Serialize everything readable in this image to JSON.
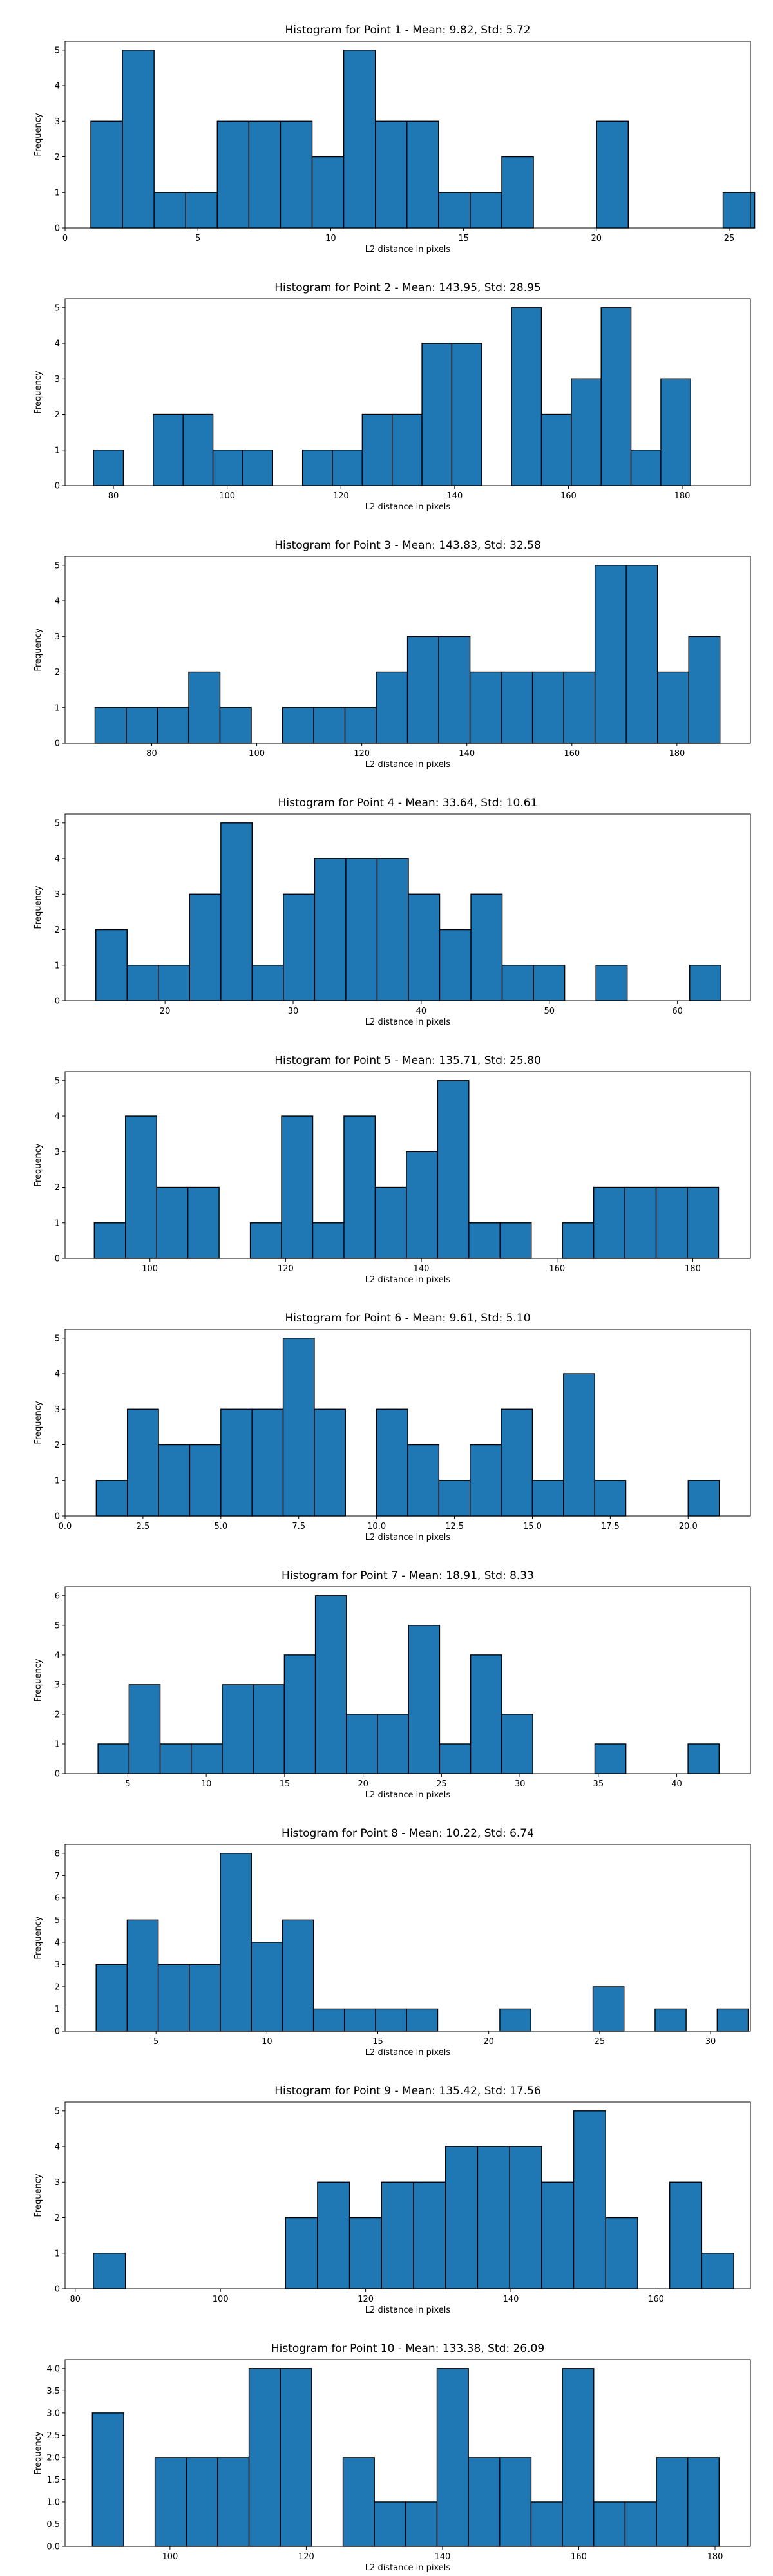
{
  "chart_data": [
    {
      "type": "bar",
      "title": "Histogram for Point 1 - Mean: 9.82, Std: 5.72",
      "xlabel": "L2 distance in pixels",
      "ylabel": "Frequency",
      "xlim": [
        0,
        25.8
      ],
      "ylim": [
        0,
        5.25
      ],
      "x_ticks": [
        0,
        5,
        10,
        15,
        20,
        25
      ],
      "x_tick_labels": [
        "0",
        "5",
        "10",
        "15",
        "20",
        "25"
      ],
      "y_ticks": [
        0,
        1,
        2,
        3,
        4,
        5
      ],
      "y_tick_labels": [
        "0",
        "1",
        "2",
        "3",
        "4",
        "5"
      ],
      "bin_start": 0.97,
      "bin_width": 1.19,
      "values": [
        3,
        5,
        1,
        1,
        3,
        3,
        3,
        2,
        5,
        3,
        3,
        1,
        1,
        2,
        0,
        0,
        3,
        0,
        0,
        0,
        1
      ]
    },
    {
      "type": "bar",
      "title": "Histogram for Point 2 - Mean: 143.95, Std: 28.95",
      "xlabel": "L2 distance in pixels",
      "ylabel": "Frequency",
      "xlim": [
        71.5,
        192
      ],
      "ylim": [
        0,
        5.25
      ],
      "x_ticks": [
        80,
        100,
        120,
        140,
        160,
        180
      ],
      "x_tick_labels": [
        "80",
        "100",
        "120",
        "140",
        "160",
        "180"
      ],
      "y_ticks": [
        0,
        1,
        2,
        3,
        4,
        5
      ],
      "y_tick_labels": [
        "0",
        "1",
        "2",
        "3",
        "4",
        "5"
      ],
      "bin_start": 76.5,
      "bin_width": 5.25,
      "values": [
        1,
        0,
        2,
        2,
        1,
        1,
        0,
        1,
        1,
        2,
        2,
        4,
        4,
        0,
        5,
        2,
        3,
        5,
        1,
        3
      ]
    },
    {
      "type": "bar",
      "title": "Histogram for Point 3 - Mean: 143.83, Std: 32.58",
      "xlabel": "L2 distance in pixels",
      "ylabel": "Frequency",
      "xlim": [
        63.5,
        194
      ],
      "ylim": [
        0,
        5.25
      ],
      "x_ticks": [
        80,
        100,
        120,
        140,
        160,
        180
      ],
      "x_tick_labels": [
        "80",
        "100",
        "120",
        "140",
        "160",
        "180"
      ],
      "y_ticks": [
        0,
        1,
        2,
        3,
        4,
        5
      ],
      "y_tick_labels": [
        "0",
        "1",
        "2",
        "3",
        "4",
        "5"
      ],
      "bin_start": 69.2,
      "bin_width": 5.95,
      "values": [
        1,
        1,
        1,
        2,
        1,
        0,
        1,
        1,
        1,
        2,
        3,
        3,
        2,
        2,
        2,
        2,
        5,
        5,
        2,
        3
      ]
    },
    {
      "type": "bar",
      "title": "Histogram for Point 4 - Mean: 33.64, Std: 10.61",
      "xlabel": "L2 distance in pixels",
      "ylabel": "Frequency",
      "xlim": [
        12.2,
        65.7
      ],
      "ylim": [
        0,
        5.25
      ],
      "x_ticks": [
        20,
        30,
        40,
        50,
        60
      ],
      "x_tick_labels": [
        "20",
        "30",
        "40",
        "50",
        "60"
      ],
      "y_ticks": [
        0,
        1,
        2,
        3,
        4,
        5
      ],
      "y_tick_labels": [
        "0",
        "1",
        "2",
        "3",
        "4",
        "5"
      ],
      "bin_start": 14.6,
      "bin_width": 2.44,
      "values": [
        2,
        1,
        1,
        3,
        5,
        1,
        3,
        4,
        4,
        4,
        3,
        2,
        3,
        1,
        1,
        0,
        1,
        0,
        0,
        1
      ]
    },
    {
      "type": "bar",
      "title": "Histogram for Point 5 - Mean: 135.71, Std: 25.80",
      "xlabel": "L2 distance in pixels",
      "ylabel": "Frequency",
      "xlim": [
        87.5,
        188.5
      ],
      "ylim": [
        0,
        5.25
      ],
      "x_ticks": [
        100,
        120,
        140,
        160,
        180
      ],
      "x_tick_labels": [
        "100",
        "120",
        "140",
        "160",
        "180"
      ],
      "y_ticks": [
        0,
        1,
        2,
        3,
        4,
        5
      ],
      "y_tick_labels": [
        "0",
        "1",
        "2",
        "3",
        "4",
        "5"
      ],
      "bin_start": 91.8,
      "bin_width": 4.6,
      "values": [
        1,
        4,
        2,
        2,
        0,
        1,
        4,
        1,
        4,
        2,
        3,
        5,
        1,
        1,
        0,
        1,
        2,
        2,
        2,
        2
      ]
    },
    {
      "type": "bar",
      "title": "Histogram for Point 6 - Mean: 9.61, Std: 5.10",
      "xlabel": "L2 distance in pixels",
      "ylabel": "Frequency",
      "xlim": [
        0,
        22.0
      ],
      "ylim": [
        0,
        5.25
      ],
      "x_ticks": [
        0,
        2.5,
        5,
        7.5,
        10,
        12.5,
        15,
        17.5,
        20
      ],
      "x_tick_labels": [
        "0.0",
        "2.5",
        "5.0",
        "7.5",
        "10.0",
        "12.5",
        "15.0",
        "17.5",
        "20.0"
      ],
      "y_ticks": [
        0,
        1,
        2,
        3,
        4,
        5
      ],
      "y_tick_labels": [
        "0",
        "1",
        "2",
        "3",
        "4",
        "5"
      ],
      "bin_start": 1.0,
      "bin_width": 1.0,
      "values": [
        1,
        3,
        2,
        2,
        3,
        3,
        5,
        3,
        0,
        3,
        2,
        1,
        2,
        3,
        1,
        4,
        1,
        0,
        0,
        1
      ]
    },
    {
      "type": "bar",
      "title": "Histogram for Point 7 - Mean: 18.91, Std: 8.33",
      "xlabel": "L2 distance in pixels",
      "ylabel": "Frequency",
      "xlim": [
        1.0,
        44.7
      ],
      "ylim": [
        0,
        6.3
      ],
      "x_ticks": [
        5,
        10,
        15,
        20,
        25,
        30,
        35,
        40
      ],
      "x_tick_labels": [
        "5",
        "10",
        "15",
        "20",
        "25",
        "30",
        "35",
        "40"
      ],
      "y_ticks": [
        0,
        1,
        2,
        3,
        4,
        5,
        6
      ],
      "y_tick_labels": [
        "0",
        "1",
        "2",
        "3",
        "4",
        "5",
        "6"
      ],
      "bin_start": 3.1,
      "bin_width": 1.98,
      "values": [
        1,
        3,
        1,
        1,
        3,
        3,
        4,
        6,
        2,
        2,
        5,
        1,
        4,
        2,
        0,
        0,
        1,
        0,
        0,
        1
      ]
    },
    {
      "type": "bar",
      "title": "Histogram for Point 8 - Mean: 10.22, Std: 6.74",
      "xlabel": "L2 distance in pixels",
      "ylabel": "Frequency",
      "xlim": [
        0.9,
        31.8
      ],
      "ylim": [
        0,
        8.4
      ],
      "x_ticks": [
        5,
        10,
        15,
        20,
        25,
        30
      ],
      "x_tick_labels": [
        "5",
        "10",
        "15",
        "20",
        "25",
        "30"
      ],
      "y_ticks": [
        0,
        1,
        2,
        3,
        4,
        5,
        6,
        7,
        8
      ],
      "y_tick_labels": [
        "0",
        "1",
        "2",
        "3",
        "4",
        "5",
        "6",
        "7",
        "8"
      ],
      "bin_start": 2.3,
      "bin_width": 1.4,
      "values": [
        3,
        5,
        3,
        3,
        8,
        4,
        5,
        1,
        1,
        1,
        1,
        0,
        0,
        1,
        0,
        0,
        2,
        0,
        1,
        0,
        1
      ]
    },
    {
      "type": "bar",
      "title": "Histogram for Point 9 - Mean: 135.42, Std: 17.56",
      "xlabel": "L2 distance in pixels",
      "ylabel": "Frequency",
      "xlim": [
        78.6,
        173.0
      ],
      "ylim": [
        0,
        5.25
      ],
      "x_ticks": [
        80,
        100,
        120,
        140,
        160
      ],
      "x_tick_labels": [
        "80",
        "100",
        "120",
        "140",
        "160"
      ],
      "y_ticks": [
        0,
        1,
        2,
        3,
        4,
        5
      ],
      "y_tick_labels": [
        "0",
        "1",
        "2",
        "3",
        "4",
        "5"
      ],
      "bin_start": 82.5,
      "bin_width": 4.41,
      "values": [
        1,
        0,
        0,
        0,
        0,
        0,
        2,
        3,
        2,
        3,
        3,
        4,
        4,
        4,
        3,
        5,
        2,
        0,
        3,
        1
      ]
    },
    {
      "type": "bar",
      "title": "Histogram for Point 10 - Mean: 133.38, Std: 26.09",
      "xlabel": "L2 distance in pixels",
      "ylabel": "Frequency",
      "xlim": [
        84.6,
        185.2
      ],
      "ylim": [
        0,
        4.2
      ],
      "x_ticks": [
        100,
        120,
        140,
        160,
        180
      ],
      "x_tick_labels": [
        "100",
        "120",
        "140",
        "160",
        "180"
      ],
      "y_ticks": [
        0,
        0.5,
        1,
        1.5,
        2,
        2.5,
        3,
        3.5,
        4
      ],
      "y_tick_labels": [
        "0.0",
        "0.5",
        "1.0",
        "1.5",
        "2.0",
        "2.5",
        "3.0",
        "3.5",
        "4.0"
      ],
      "bin_start": 88.6,
      "bin_width": 4.6,
      "values": [
        3,
        0,
        2,
        2,
        2,
        4,
        4,
        0,
        2,
        1,
        1,
        4,
        2,
        2,
        1,
        4,
        1,
        1,
        2,
        2
      ]
    }
  ]
}
